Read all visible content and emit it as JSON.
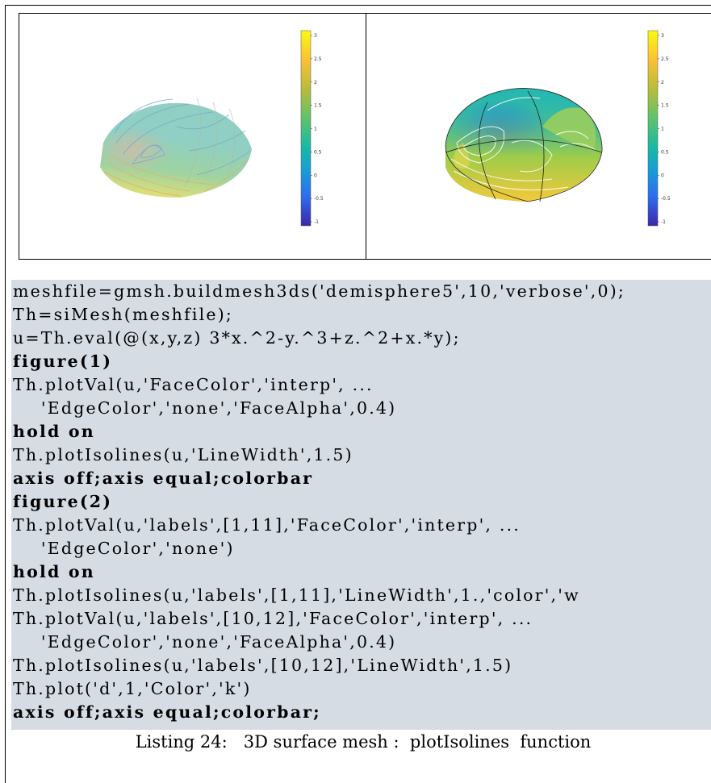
{
  "figures": [
    {
      "colorbar": {
        "ticks": [
          "3",
          "2.5",
          "2",
          "1.5",
          "1",
          "0.5",
          "0",
          "-0.5",
          "-1"
        ]
      }
    },
    {
      "colorbar": {
        "ticks": [
          "3",
          "2.5",
          "2",
          "1.5",
          "1",
          "0.5",
          "0",
          "-0.5",
          "-1"
        ]
      }
    }
  ],
  "code": {
    "lines": [
      "meshfile=gmsh.buildmesh3ds('demisphere5',10,'verbose',0);",
      "Th=siMesh(meshfile);",
      "u=Th.eval(@(x,y,z) 3*x.^2-y.^3+z.^2+x.*y);",
      "figure(1)",
      "Th.plotVal(u,'FaceColor','interp', ...",
      "    'EdgeColor','none','FaceAlpha',0.4)",
      "hold on",
      "Th.plotIsolines(u,'LineWidth',1.5)",
      "axis off;axis equal;colorbar",
      "figure(2)",
      "Th.plotVal(u,'labels',[1,11],'FaceColor','interp', ...",
      "    'EdgeColor','none')",
      "hold on",
      "Th.plotIsolines(u,'labels',[1,11],'LineWidth',1.,'color','w",
      "Th.plotVal(u,'labels',[10,12],'FaceColor','interp', ...",
      "    'EdgeColor','none','FaceAlpha',0.4)",
      "Th.plotIsolines(u,'labels',[10,12],'LineWidth',1.5)",
      "Th.plot('d',1,'Color','k')",
      "axis off;axis equal;colorbar;"
    ]
  },
  "caption": {
    "label": "Listing 24:",
    "text": "3D surface mesh :  plotIsolines  function"
  },
  "colors": {
    "code_background": "#d6dce4",
    "colormap_top": "#f9fb0e",
    "colormap_mid": "#17b9a6",
    "colormap_bottom": "#3e26a8"
  }
}
